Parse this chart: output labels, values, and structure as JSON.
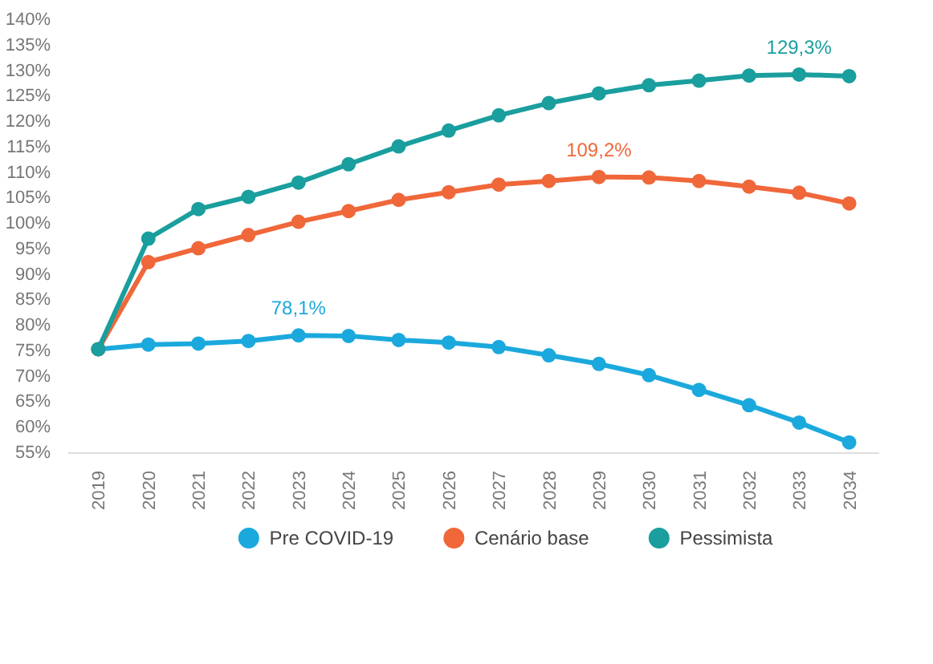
{
  "chart_data": {
    "type": "line",
    "categories": [
      "2019",
      "2020",
      "2021",
      "2022",
      "2023",
      "2024",
      "2025",
      "2026",
      "2027",
      "2028",
      "2029",
      "2030",
      "2031",
      "2032",
      "2033",
      "2034"
    ],
    "series": [
      {
        "name": "Pre COVID-19",
        "color": "#1ba9dd",
        "values": [
          75.4,
          76.3,
          76.5,
          77.0,
          78.1,
          78.0,
          77.2,
          76.7,
          75.8,
          74.2,
          72.5,
          70.3,
          67.4,
          64.4,
          61.0,
          57.1
        ]
      },
      {
        "name": "Cenário base",
        "color": "#f0673a",
        "values": [
          75.4,
          92.5,
          95.2,
          97.8,
          100.4,
          102.5,
          104.7,
          106.2,
          107.7,
          108.4,
          109.2,
          109.1,
          108.4,
          107.3,
          106.1,
          104.0
        ]
      },
      {
        "name": "Pessimista",
        "color": "#1a9e9e",
        "values": [
          75.4,
          97.1,
          102.9,
          105.3,
          108.1,
          111.7,
          115.2,
          118.3,
          121.3,
          123.7,
          125.6,
          127.2,
          128.1,
          129.1,
          129.3,
          129.0
        ]
      }
    ],
    "ylim": [
      55,
      140
    ],
    "yticks": [
      {
        "value": 55,
        "label": "55%"
      },
      {
        "value": 60,
        "label": "60%"
      },
      {
        "value": 65,
        "label": "65%"
      },
      {
        "value": 70,
        "label": "70%"
      },
      {
        "value": 75,
        "label": "75%"
      },
      {
        "value": 80,
        "label": "80%"
      },
      {
        "value": 85,
        "label": "85%"
      },
      {
        "value": 90,
        "label": "90%"
      },
      {
        "value": 95,
        "label": "95%"
      },
      {
        "value": 100,
        "label": "100%"
      },
      {
        "value": 105,
        "label": "105%"
      },
      {
        "value": 110,
        "label": "110%"
      },
      {
        "value": 115,
        "label": "115%"
      },
      {
        "value": 120,
        "label": "120%"
      },
      {
        "value": 125,
        "label": "125%"
      },
      {
        "value": 130,
        "label": "130%"
      },
      {
        "value": 135,
        "label": "135%"
      },
      {
        "value": 140,
        "label": "140%"
      }
    ],
    "annotations": [
      {
        "text": "78,1%",
        "x": "2023",
        "y": 78.1
      },
      {
        "text": "109,2%",
        "x": "2029",
        "y": 109.2
      },
      {
        "text": "129,3%",
        "x": "2033",
        "y": 129.3
      }
    ],
    "marker": "circle",
    "line_style": "solid",
    "grid": false,
    "legend": "bottom"
  }
}
